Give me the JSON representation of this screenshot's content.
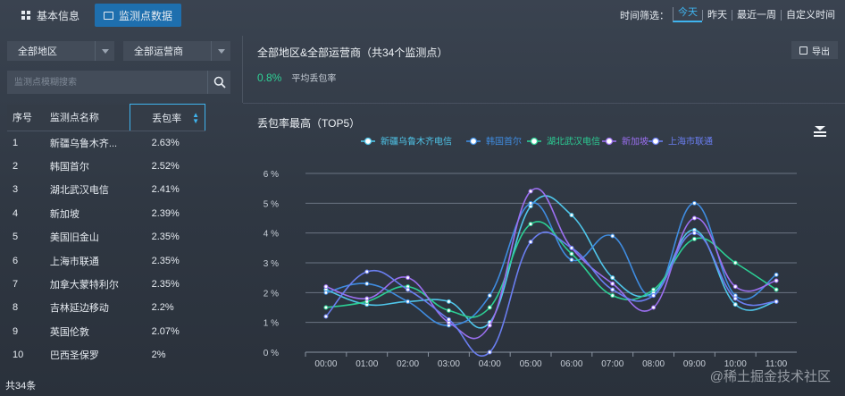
{
  "tabs": [
    {
      "label": "基本信息",
      "icon": "grid-icon"
    },
    {
      "label": "监测点数据",
      "icon": "monitor-icon"
    }
  ],
  "time_filter": {
    "label": "时间筛选：",
    "options": [
      "今天",
      "昨天",
      "最近一周",
      "自定义时间"
    ],
    "selected": "今天"
  },
  "filters": {
    "region": "全部地区",
    "operator": "全部运营商"
  },
  "search": {
    "placeholder": "监测点模糊搜索"
  },
  "table": {
    "headers": [
      "序号",
      "监测点名称",
      "丢包率"
    ],
    "rows": [
      [
        "1",
        "新疆乌鲁木齐...",
        "2.63%"
      ],
      [
        "2",
        "韩国首尔",
        "2.52%"
      ],
      [
        "3",
        "湖北武汉电信",
        "2.41%"
      ],
      [
        "4",
        "新加坡",
        "2.39%"
      ],
      [
        "5",
        "美国旧金山",
        "2.35%"
      ],
      [
        "6",
        "上海市联通",
        "2.35%"
      ],
      [
        "7",
        "加拿大蒙特利尔",
        "2.35%"
      ],
      [
        "8",
        "吉林延边移动",
        "2.2%"
      ],
      [
        "9",
        "英国伦敦",
        "2.07%"
      ],
      [
        "10",
        "巴西圣保罗",
        "2%"
      ]
    ],
    "total": "共34条"
  },
  "summary": {
    "title": "全部地区&全部运营商（共34个监测点）",
    "rate_value": "0.8%",
    "rate_label": "平均丢包率",
    "export_label": "导出"
  },
  "chart_title": "丢包率最高（TOP5）",
  "colors": {
    "accent": "#1e6fae",
    "highlight": "#3fb4ef",
    "positive": "#2fd196"
  },
  "chart_data": {
    "type": "line",
    "x": [
      "00:00",
      "01:00",
      "02:00",
      "03:00",
      "04:00",
      "05:00",
      "06:00",
      "07:00",
      "08:00",
      "09:00",
      "10:00",
      "11:00"
    ],
    "ylim": [
      0,
      6
    ],
    "yticks": [
      "0 %",
      "1 %",
      "2 %",
      "3 %",
      "4 %",
      "5 %",
      "6 %"
    ],
    "grid": true,
    "legend_position": "top",
    "series": [
      {
        "name": "新疆乌鲁木齐电信",
        "color": "#4fc6ea",
        "values": [
          2.1,
          1.6,
          1.7,
          1.7,
          1.0,
          4.9,
          4.6,
          2.5,
          2.0,
          4.1,
          1.6,
          1.7
        ]
      },
      {
        "name": "韩国首尔",
        "color": "#3f8ce0",
        "values": [
          2.0,
          2.3,
          1.7,
          0.9,
          1.9,
          5.0,
          3.1,
          3.9,
          1.9,
          5.0,
          1.9,
          2.6
        ]
      },
      {
        "name": "湖北武汉电信",
        "color": "#2ccf95",
        "values": [
          1.5,
          1.7,
          2.2,
          1.4,
          1.5,
          4.3,
          3.3,
          1.9,
          2.1,
          3.8,
          3.0,
          2.1
        ]
      },
      {
        "name": "新加坡",
        "color": "#9b6ff0",
        "values": [
          2.2,
          1.8,
          2.5,
          1.0,
          0.9,
          5.4,
          3.5,
          2.3,
          1.5,
          4.5,
          2.2,
          2.4
        ]
      },
      {
        "name": "上海市联通",
        "color": "#6a7ef0",
        "values": [
          1.2,
          2.7,
          2.1,
          1.1,
          0.0,
          3.7,
          3.5,
          2.1,
          1.9,
          4.0,
          1.8,
          1.7
        ]
      }
    ]
  },
  "watermark": "@稀土掘金技术社区"
}
